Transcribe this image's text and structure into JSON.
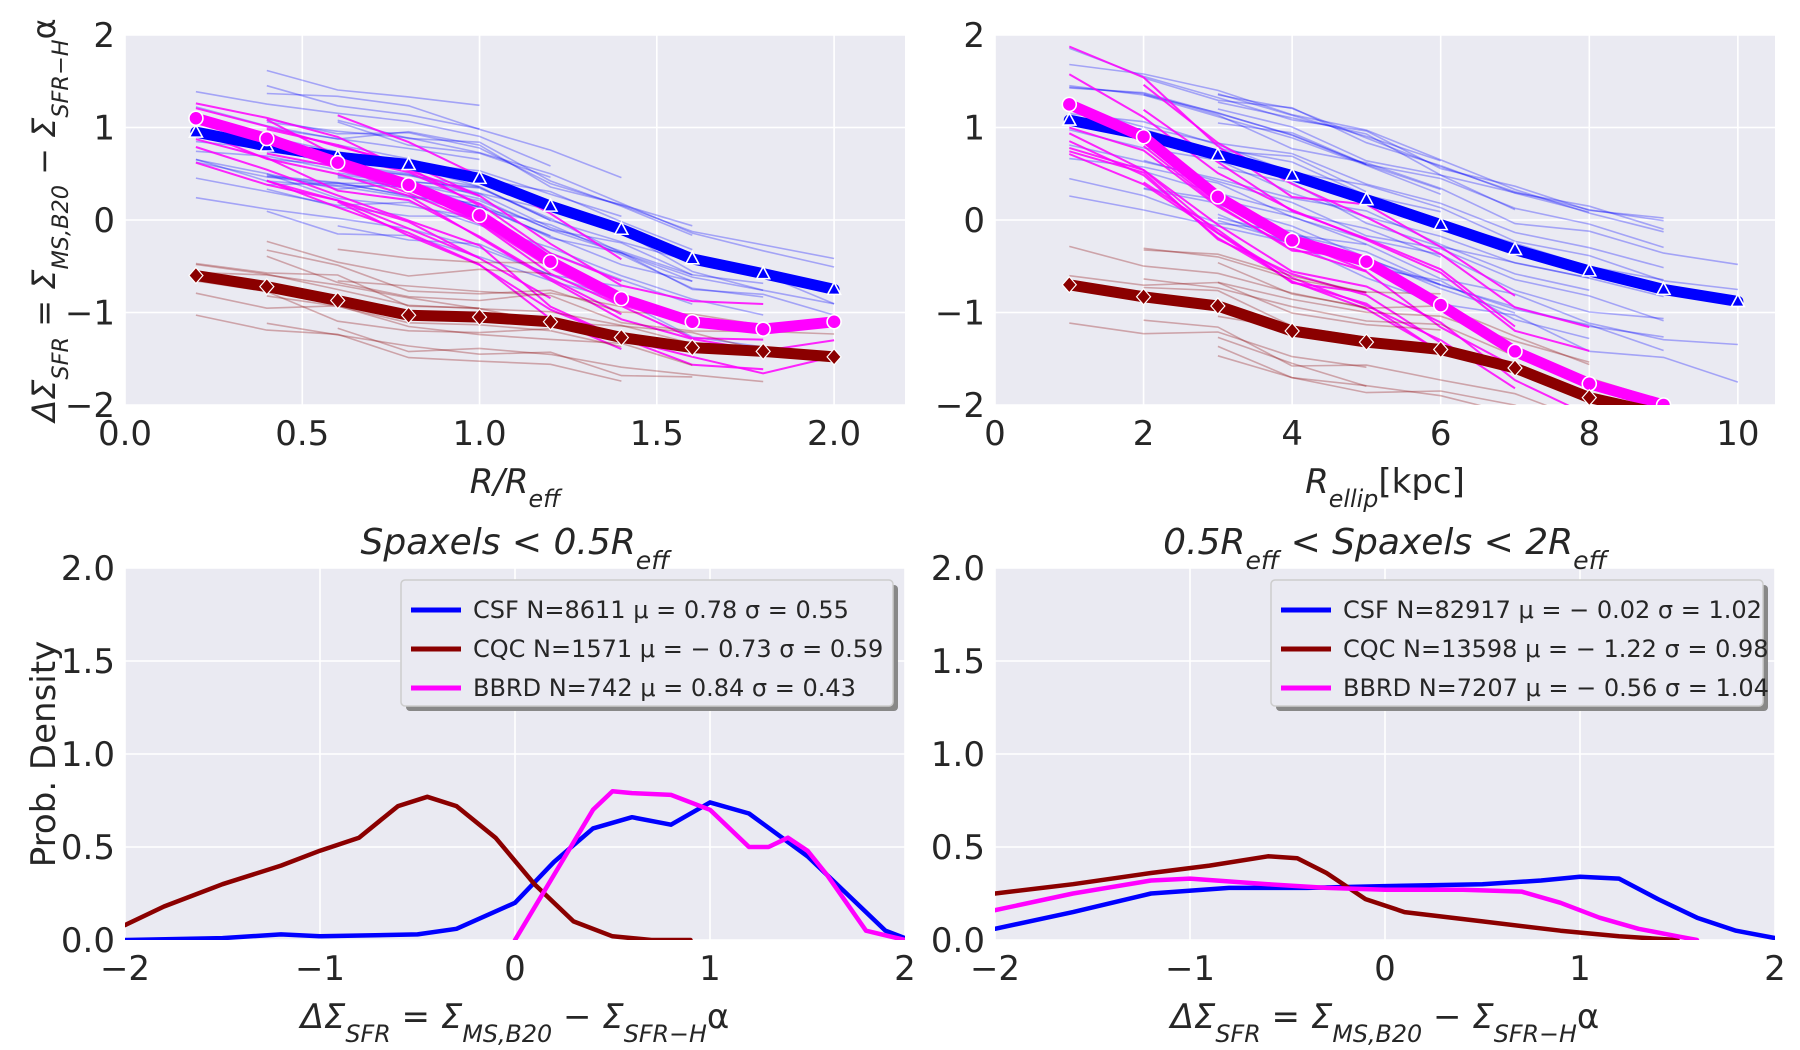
{
  "colors": {
    "csf": "#0000ff",
    "cqc": "#8b0000",
    "bbrd": "#ff00ff",
    "plot_bg": "#eaeaf2",
    "grid": "#ffffff"
  },
  "chart_data": [
    {
      "type": "line",
      "panel": "top-left",
      "title": "",
      "xlabel": "R/R_eff",
      "ylabel": "ΔΣ_SFR = Σ_MS,B20 − Σ_SFR−Hα",
      "xlim": [
        0.0,
        2.2
      ],
      "ylim": [
        -2,
        2
      ],
      "xticks": [
        "0.0",
        "0.5",
        "1.0",
        "1.5",
        "2.0"
      ],
      "yticks": [
        "2",
        "1",
        "0",
        "−1",
        "−2"
      ],
      "grid": true,
      "series": [
        {
          "name": "CSF",
          "marker": "triangle",
          "x": [
            0.2,
            0.4,
            0.6,
            0.8,
            1.0,
            1.2,
            1.4,
            1.6,
            1.8,
            2.0
          ],
          "y": [
            0.95,
            0.8,
            0.68,
            0.6,
            0.45,
            0.15,
            -0.1,
            -0.42,
            -0.58,
            -0.75
          ]
        },
        {
          "name": "BBRD",
          "marker": "circle",
          "x": [
            0.2,
            0.4,
            0.6,
            0.8,
            1.0,
            1.2,
            1.4,
            1.6,
            1.8,
            2.0
          ],
          "y": [
            1.1,
            0.88,
            0.62,
            0.38,
            0.05,
            -0.45,
            -0.85,
            -1.1,
            -1.18,
            -1.1
          ]
        },
        {
          "name": "CQC",
          "marker": "diamond",
          "x": [
            0.2,
            0.4,
            0.6,
            0.8,
            1.0,
            1.2,
            1.4,
            1.6,
            1.8,
            2.0
          ],
          "y": [
            -0.6,
            -0.72,
            -0.87,
            -1.03,
            -1.05,
            -1.1,
            -1.27,
            -1.38,
            -1.42,
            -1.48
          ]
        }
      ]
    },
    {
      "type": "line",
      "panel": "top-right",
      "title": "",
      "xlabel": "R_ellip[kpc]",
      "ylabel": "",
      "xlim": [
        0,
        10.5
      ],
      "ylim": [
        -2,
        2
      ],
      "xticks": [
        "0",
        "2",
        "4",
        "6",
        "8",
        "10"
      ],
      "yticks": [
        "2",
        "1",
        "0",
        "−1",
        "−2"
      ],
      "grid": true,
      "series": [
        {
          "name": "CSF",
          "marker": "triangle",
          "x": [
            1,
            2,
            3,
            4,
            5,
            6,
            7,
            8,
            9,
            10
          ],
          "y": [
            1.08,
            0.92,
            0.7,
            0.48,
            0.22,
            -0.05,
            -0.32,
            -0.55,
            -0.75,
            -0.88
          ]
        },
        {
          "name": "BBRD",
          "marker": "circle",
          "x": [
            1,
            2,
            3,
            4,
            5,
            6,
            7,
            8,
            9
          ],
          "y": [
            1.25,
            0.9,
            0.25,
            -0.22,
            -0.45,
            -0.92,
            -1.42,
            -1.77,
            -2.0
          ]
        },
        {
          "name": "CQC",
          "marker": "diamond",
          "x": [
            1,
            2,
            3,
            4,
            5,
            6,
            7,
            8,
            9
          ],
          "y": [
            -0.7,
            -0.83,
            -0.93,
            -1.2,
            -1.32,
            -1.4,
            -1.6,
            -1.92,
            -2.1
          ]
        }
      ]
    },
    {
      "type": "line",
      "panel": "bottom-left",
      "title": "Spaxels < 0.5R_eff",
      "xlabel": "ΔΣ_SFR = Σ_MS,B20 − Σ_SFR−Hα",
      "ylabel": "Prob. Density",
      "xlim": [
        -2,
        2
      ],
      "ylim": [
        0,
        2
      ],
      "xticks": [
        "−2",
        "−1",
        "0",
        "1",
        "2"
      ],
      "yticks": [
        "2.0",
        "1.5",
        "1.0",
        "0.5",
        "0.0"
      ],
      "grid": true,
      "legend_position": "top-right",
      "legend": [
        {
          "label": "CSF N=8611 μ = 0.78 σ = 0.55",
          "color": "#0000ff"
        },
        {
          "label": "CQC N=1571 μ = − 0.73 σ = 0.59",
          "color": "#8b0000"
        },
        {
          "label": "BBRD N=742 μ = 0.84 σ = 0.43",
          "color": "#ff00ff"
        }
      ],
      "series": [
        {
          "name": "CSF",
          "x": [
            -2,
            -1.5,
            -1.2,
            -1,
            -0.5,
            -0.3,
            0,
            0.2,
            0.4,
            0.6,
            0.8,
            1,
            1.2,
            1.5,
            1.7,
            1.9,
            2
          ],
          "y": [
            0,
            0.01,
            0.03,
            0.02,
            0.03,
            0.06,
            0.2,
            0.42,
            0.6,
            0.66,
            0.62,
            0.74,
            0.68,
            0.45,
            0.25,
            0.05,
            0.01
          ]
        },
        {
          "name": "CQC",
          "x": [
            -2,
            -1.8,
            -1.5,
            -1.2,
            -1,
            -0.8,
            -0.6,
            -0.45,
            -0.3,
            -0.1,
            0.1,
            0.3,
            0.5,
            0.7,
            0.9
          ],
          "y": [
            0.08,
            0.18,
            0.3,
            0.4,
            0.48,
            0.55,
            0.72,
            0.77,
            0.72,
            0.55,
            0.3,
            0.1,
            0.02,
            0.0,
            0.0
          ]
        },
        {
          "name": "BBRD",
          "x": [
            0,
            0.2,
            0.4,
            0.5,
            0.6,
            0.8,
            1,
            1.1,
            1.2,
            1.3,
            1.4,
            1.5,
            1.6,
            1.7,
            1.8,
            2
          ],
          "y": [
            0.0,
            0.35,
            0.7,
            0.8,
            0.79,
            0.78,
            0.7,
            0.6,
            0.5,
            0.5,
            0.55,
            0.48,
            0.35,
            0.2,
            0.05,
            0.0
          ]
        }
      ]
    },
    {
      "type": "line",
      "panel": "bottom-right",
      "title": "0.5R_eff < Spaxels < 2R_eff",
      "xlabel": "ΔΣ_SFR = Σ_MS,B20 − Σ_SFR−Hα",
      "ylabel": "",
      "xlim": [
        -2,
        2
      ],
      "ylim": [
        0,
        2
      ],
      "xticks": [
        "−2",
        "−1",
        "0",
        "1",
        "2"
      ],
      "yticks": [
        "2.0",
        "1.5",
        "1.0",
        "0.5",
        "0.0"
      ],
      "grid": true,
      "legend_position": "top-right",
      "legend": [
        {
          "label": "CSF N=82917 μ = − 0.02 σ = 1.02",
          "color": "#0000ff"
        },
        {
          "label": "CQC N=13598 μ = − 1.22 σ = 0.98",
          "color": "#8b0000"
        },
        {
          "label": "BBRD N=7207 μ = − 0.56 σ = 1.04",
          "color": "#ff00ff"
        }
      ],
      "series": [
        {
          "name": "CSF",
          "x": [
            -2,
            -1.6,
            -1.2,
            -0.8,
            -0.4,
            0,
            0.5,
            0.8,
            1.0,
            1.2,
            1.4,
            1.6,
            1.8,
            2
          ],
          "y": [
            0.06,
            0.15,
            0.25,
            0.28,
            0.28,
            0.29,
            0.3,
            0.32,
            0.34,
            0.33,
            0.22,
            0.12,
            0.05,
            0.01
          ]
        },
        {
          "name": "CQC",
          "x": [
            -2,
            -1.6,
            -1.2,
            -0.9,
            -0.6,
            -0.45,
            -0.3,
            -0.1,
            0.1,
            0.5,
            0.9,
            1.2,
            1.5
          ],
          "y": [
            0.25,
            0.3,
            0.36,
            0.4,
            0.45,
            0.44,
            0.36,
            0.22,
            0.15,
            0.1,
            0.05,
            0.02,
            0.0
          ]
        },
        {
          "name": "BBRD",
          "x": [
            -2,
            -1.6,
            -1.2,
            -1.0,
            -0.6,
            -0.3,
            0,
            0.4,
            0.7,
            0.9,
            1.1,
            1.3,
            1.5,
            1.6
          ],
          "y": [
            0.16,
            0.25,
            0.32,
            0.33,
            0.3,
            0.28,
            0.27,
            0.27,
            0.26,
            0.2,
            0.12,
            0.06,
            0.02,
            0.0
          ]
        }
      ]
    }
  ]
}
